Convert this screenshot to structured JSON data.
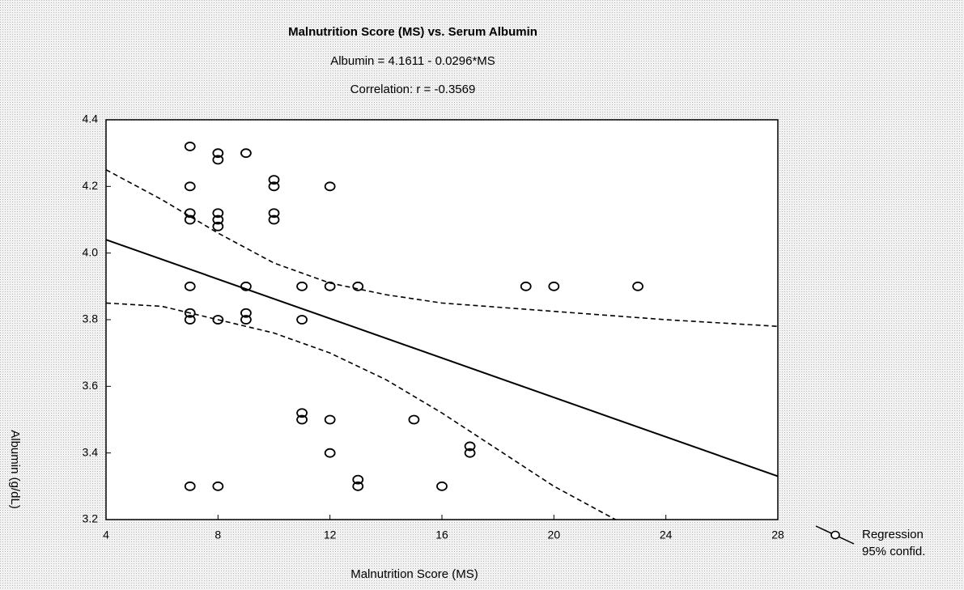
{
  "chart_data": {
    "type": "scatter",
    "title": "Malnutrition Score (MS) vs. Serum Albumin",
    "subtitle": [
      "Albumin = 4.1611 - 0.0296*MS",
      "Correlation: r = -0.3569"
    ],
    "x_label": "Malnutrition Score (MS)",
    "y_label": "Albumin (g/dL)",
    "xlim": [
      4,
      28
    ],
    "ylim": [
      3.2,
      4.4
    ],
    "xticks": [
      4,
      8,
      12,
      16,
      20,
      24,
      28
    ],
    "yticks": [
      {
        "value": 3.2,
        "label": "3.2"
      },
      {
        "value": 3.4,
        "label": "3.4"
      },
      {
        "value": 3.6,
        "label": "3.6"
      },
      {
        "value": 3.8,
        "label": "3.8"
      },
      {
        "value": 4,
        "label": "4.0"
      },
      {
        "value": 4.2,
        "label": "4.2"
      },
      {
        "value": 4.4,
        "label": "4.4"
      }
    ],
    "points": {
      "color": "#000000",
      "x": [
        7,
        7,
        7,
        7,
        7,
        7,
        7,
        7,
        8,
        8,
        8,
        8,
        8,
        8,
        8,
        9,
        9,
        9,
        9,
        10,
        10,
        10,
        10,
        11,
        11,
        11,
        11,
        12,
        12,
        12,
        12,
        13,
        13,
        13,
        15,
        16,
        17,
        17,
        19,
        20,
        23
      ],
      "values": [
        4.32,
        4.2,
        4.12,
        4.1,
        3.9,
        3.82,
        3.8,
        3.3,
        4.3,
        4.28,
        4.12,
        4.1,
        4.08,
        3.8,
        3.3,
        4.3,
        3.9,
        3.82,
        3.8,
        4.22,
        4.2,
        4.12,
        4.1,
        3.9,
        3.8,
        3.52,
        3.5,
        4.2,
        3.9,
        3.5,
        3.4,
        3.9,
        3.32,
        3.3,
        3.5,
        3.3,
        3.42,
        3.4,
        3.9,
        3.9,
        3.9
      ]
    },
    "series": [
      {
        "name": "Regression",
        "color": "#000000",
        "x": [
          4,
          28
        ],
        "values": [
          4.04,
          3.33
        ]
      },
      {
        "name": "95% confid.",
        "color": "#000000",
        "bands": [
          {
            "x": [
              4,
              6,
              8,
              10,
              12,
              14,
              16,
              20,
              24,
              28
            ],
            "values": [
              4.25,
              4.16,
              4.06,
              3.97,
              3.91,
              3.875,
              3.85,
              3.825,
              3.8,
              3.78
            ]
          },
          {
            "x": [
              4,
              6,
              8,
              10,
              12,
              14,
              16,
              18,
              20,
              22.2
            ],
            "values": [
              3.85,
              3.84,
              3.8,
              3.76,
              3.7,
              3.62,
              3.52,
              3.41,
              3.3,
              3.2
            ]
          }
        ]
      }
    ]
  }
}
